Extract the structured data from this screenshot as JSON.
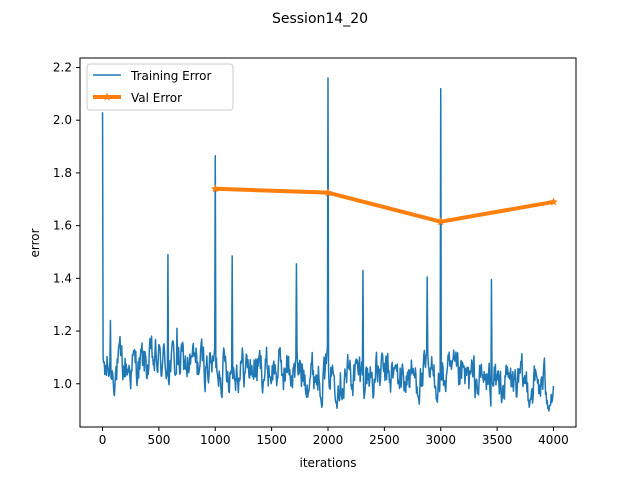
{
  "chart_data": {
    "type": "line",
    "title": "Session14_20",
    "xlabel": "iterations",
    "ylabel": "error",
    "xlim": [
      -200,
      4200
    ],
    "ylim": [
      0.836,
      2.236
    ],
    "x_ticks": [
      0,
      500,
      1000,
      1500,
      2000,
      2500,
      3000,
      3500,
      4000
    ],
    "y_ticks": [
      1.0,
      1.2,
      1.4,
      1.6,
      1.8,
      2.0,
      2.2
    ],
    "y_tick_labels": [
      "1.0",
      "1.2",
      "1.4",
      "1.6",
      "1.8",
      "2.0",
      "2.2"
    ],
    "grid": false,
    "legend": {
      "placement": "top-left",
      "entries": [
        "Training Error",
        "Val Error"
      ]
    },
    "series": [
      {
        "name": "Training Error",
        "color": "#1f77b4",
        "style": "noisy-line",
        "x_range": [
          0,
          4000
        ],
        "approx_level": [
          [
            0,
            1.05
          ],
          [
            500,
            1.08
          ],
          [
            1000,
            1.07
          ],
          [
            2000,
            1.04
          ],
          [
            3000,
            1.02
          ],
          [
            4000,
            0.99
          ]
        ],
        "approx_noise_amplitude": 0.06,
        "spikes": [
          {
            "x": 0,
            "y": 2.03
          },
          {
            "x": 70,
            "y": 1.24
          },
          {
            "x": 580,
            "y": 1.49
          },
          {
            "x": 660,
            "y": 1.21
          },
          {
            "x": 1000,
            "y": 1.865
          },
          {
            "x": 1150,
            "y": 1.485
          },
          {
            "x": 1720,
            "y": 1.455
          },
          {
            "x": 2000,
            "y": 2.16
          },
          {
            "x": 2310,
            "y": 1.43
          },
          {
            "x": 2880,
            "y": 1.405
          },
          {
            "x": 3000,
            "y": 2.12
          },
          {
            "x": 3450,
            "y": 1.395
          }
        ]
      },
      {
        "name": "Val Error",
        "color": "#ff7f0e",
        "x": [
          1000,
          2000,
          3000,
          4000
        ],
        "y": [
          1.74,
          1.725,
          1.615,
          1.69
        ]
      }
    ]
  }
}
